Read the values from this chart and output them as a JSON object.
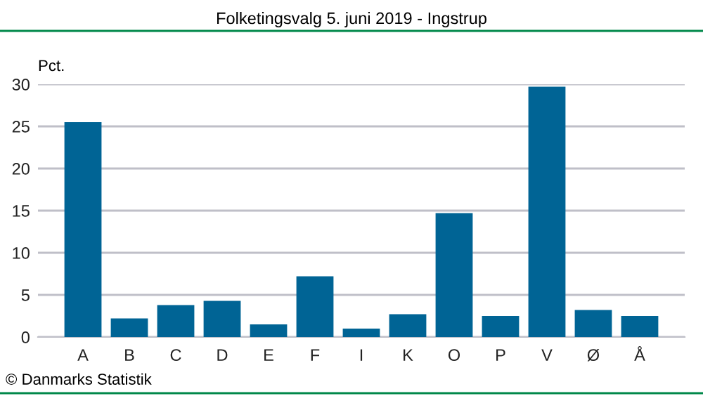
{
  "chart_data": {
    "type": "bar",
    "title": "Folketingsvalg 5. juni 2019 - Ingstrup",
    "ylabel": "Pct.",
    "categories": [
      "A",
      "B",
      "C",
      "D",
      "E",
      "F",
      "I",
      "K",
      "O",
      "P",
      "V",
      "Ø",
      "Å"
    ],
    "values": [
      25.5,
      2.2,
      3.8,
      4.3,
      1.5,
      7.2,
      1.0,
      2.7,
      14.7,
      2.5,
      29.7,
      3.2,
      2.5
    ],
    "color": "#006495",
    "ylim": [
      0,
      30
    ],
    "yticks": [
      0,
      5,
      10,
      15,
      20,
      25,
      30
    ],
    "grid": "y",
    "annotations": [
      "© Danmarks Statistik"
    ]
  }
}
